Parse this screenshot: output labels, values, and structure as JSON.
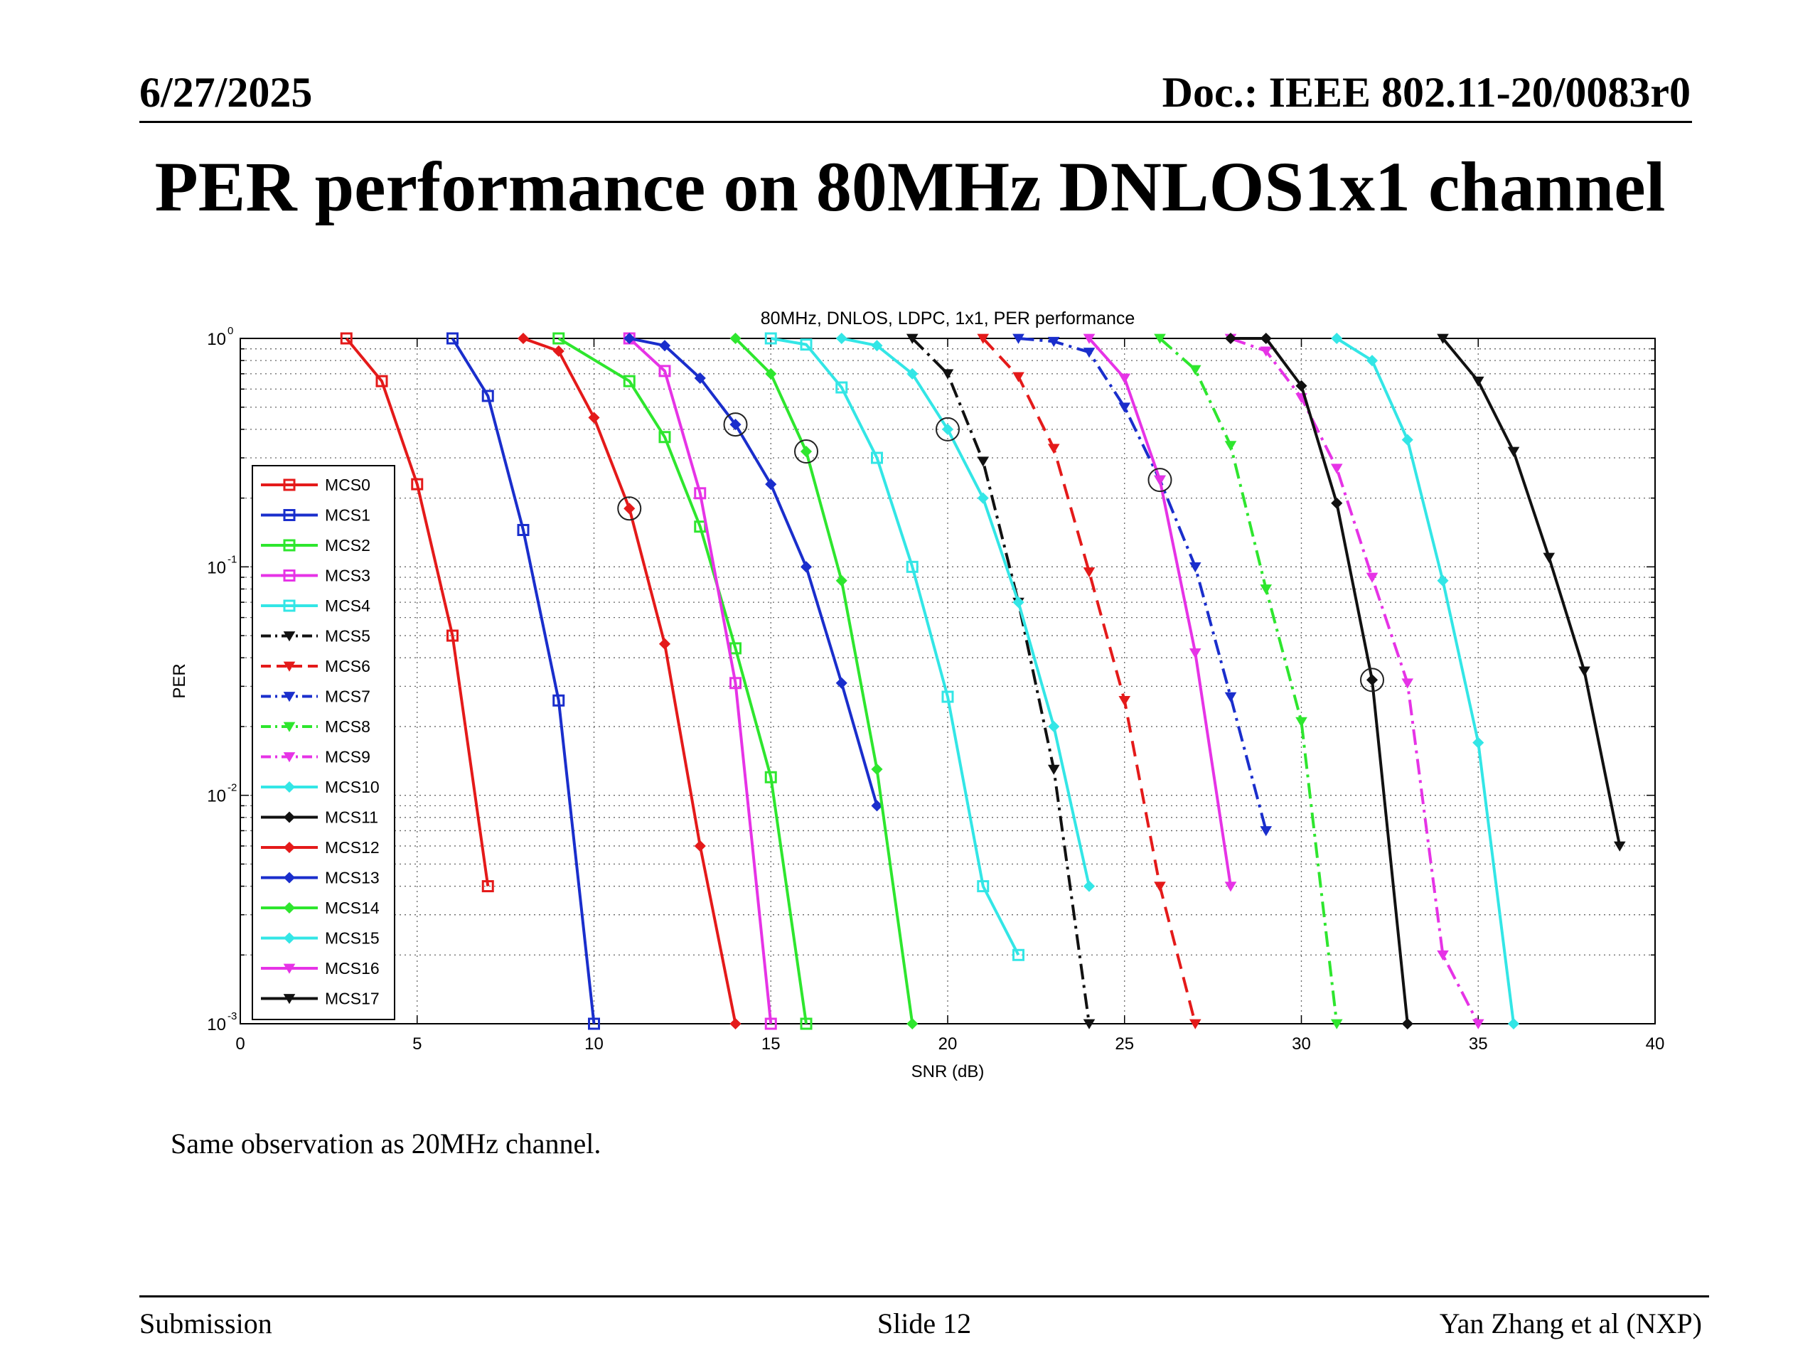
{
  "slide": {
    "date": "6/27/2025",
    "doc_id": "Doc.: IEEE 802.11-20/0083r0",
    "title": "PER performance on 80MHz DNLOS1x1 channel",
    "body_text": "Same observation as 20MHz channel.",
    "footer_left": "Submission",
    "footer_center": "Slide 12",
    "footer_right": "Yan Zhang et al (NXP)"
  },
  "chart_data": {
    "type": "line",
    "title": "80MHz, DNLOS, LDPC, 1x1, PER performance",
    "xlabel": "SNR (dB)",
    "ylabel": "PER",
    "xlim": [
      0,
      40
    ],
    "ylim": [
      0.001,
      1
    ],
    "yscale": "log",
    "grid": true,
    "legend_position": "left",
    "xticks": [
      "0",
      "5",
      "10",
      "15",
      "20",
      "25",
      "30",
      "35",
      "40"
    ],
    "yticks": [
      {
        "base": "10",
        "exp": "0",
        "value": 1
      },
      {
        "base": "10",
        "exp": "-1",
        "value": 0.1
      },
      {
        "base": "10",
        "exp": "-2",
        "value": 0.01
      },
      {
        "base": "10",
        "exp": "-3",
        "value": 0.001
      }
    ],
    "series": [
      {
        "name": "MCS0",
        "color": "#e41a1a",
        "dash": "solid",
        "marker": "square",
        "x": [
          3,
          4,
          5,
          6,
          7
        ],
        "y": [
          1,
          0.65,
          0.23,
          0.05,
          0.004
        ]
      },
      {
        "name": "MCS1",
        "color": "#1a2ecc",
        "dash": "solid",
        "marker": "square",
        "x": [
          6,
          7,
          8,
          9,
          10
        ],
        "y": [
          1,
          0.56,
          0.145,
          0.026,
          0.001
        ]
      },
      {
        "name": "MCS2",
        "color": "#2ee62e",
        "dash": "solid",
        "marker": "square",
        "x": [
          9,
          11,
          12,
          13,
          14,
          15,
          16
        ],
        "y": [
          1,
          0.65,
          0.37,
          0.15,
          0.044,
          0.012,
          0.001
        ]
      },
      {
        "name": "MCS3",
        "color": "#e633e6",
        "dash": "solid",
        "marker": "square",
        "x": [
          11,
          12,
          13,
          14,
          15
        ],
        "y": [
          1,
          0.72,
          0.21,
          0.031,
          0.001
        ]
      },
      {
        "name": "MCS4",
        "color": "#33e6e6",
        "dash": "solid",
        "marker": "square",
        "x": [
          15,
          16,
          17,
          18,
          19,
          20,
          21,
          22
        ],
        "y": [
          1,
          0.94,
          0.61,
          0.3,
          0.1,
          0.027,
          0.004,
          0.002
        ]
      },
      {
        "name": "MCS5",
        "color": "#111111",
        "dash": "dashdot",
        "marker": "triangle-down",
        "x": [
          19,
          20,
          21,
          22,
          23,
          24
        ],
        "y": [
          1,
          0.7,
          0.29,
          0.07,
          0.013,
          0.001
        ]
      },
      {
        "name": "MCS6",
        "color": "#e41a1a",
        "dash": "dashed",
        "marker": "triangle-down",
        "x": [
          21,
          22,
          23,
          24,
          25,
          26,
          27
        ],
        "y": [
          1,
          0.68,
          0.33,
          0.095,
          0.026,
          0.004,
          0.001
        ]
      },
      {
        "name": "MCS7",
        "color": "#1a2ecc",
        "dash": "dashdot",
        "marker": "triangle-down",
        "x": [
          22,
          23,
          24,
          25,
          26,
          27,
          28,
          29
        ],
        "y": [
          1,
          0.97,
          0.87,
          0.5,
          0.24,
          0.1,
          0.027,
          0.007
        ]
      },
      {
        "name": "MCS8",
        "color": "#2ee62e",
        "dash": "dashdot",
        "marker": "triangle-down",
        "x": [
          26,
          27,
          28,
          29,
          30,
          31
        ],
        "y": [
          1,
          0.73,
          0.34,
          0.08,
          0.021,
          0.001
        ]
      },
      {
        "name": "MCS9",
        "color": "#e633e6",
        "dash": "dashdot",
        "marker": "triangle-down",
        "x": [
          28,
          29,
          30,
          31,
          32,
          33,
          34,
          35
        ],
        "y": [
          1,
          0.88,
          0.55,
          0.27,
          0.09,
          0.031,
          0.002,
          0.001
        ]
      },
      {
        "name": "MCS10",
        "color": "#33e6e6",
        "dash": "solid",
        "marker": "diamond",
        "x": [
          17,
          18,
          19,
          20,
          21,
          22,
          23,
          24
        ],
        "y": [
          1,
          0.93,
          0.7,
          0.4,
          0.2,
          0.07,
          0.02,
          0.004
        ]
      },
      {
        "name": "MCS11",
        "color": "#111111",
        "dash": "solid",
        "marker": "diamond",
        "x": [
          28,
          29,
          30,
          31,
          32,
          33
        ],
        "y": [
          1,
          1,
          0.62,
          0.19,
          0.032,
          0.001
        ]
      },
      {
        "name": "MCS12",
        "color": "#e41a1a",
        "dash": "solid",
        "marker": "diamond",
        "x": [
          8,
          9,
          10,
          11,
          12,
          13,
          14
        ],
        "y": [
          1,
          0.88,
          0.45,
          0.18,
          0.046,
          0.006,
          0.001
        ]
      },
      {
        "name": "MCS13",
        "color": "#1a2ecc",
        "dash": "solid",
        "marker": "diamond",
        "x": [
          11,
          12,
          13,
          14,
          15,
          16,
          17,
          18
        ],
        "y": [
          1,
          0.93,
          0.67,
          0.42,
          0.23,
          0.1,
          0.031,
          0.009
        ]
      },
      {
        "name": "MCS14",
        "color": "#2ee62e",
        "dash": "solid",
        "marker": "diamond",
        "x": [
          14,
          15,
          16,
          17,
          18,
          19
        ],
        "y": [
          1,
          0.7,
          0.32,
          0.087,
          0.013,
          0.001
        ]
      },
      {
        "name": "MCS15",
        "color": "#33e6e6",
        "dash": "solid",
        "marker": "diamond",
        "x": [
          31,
          32,
          33,
          34,
          35,
          36
        ],
        "y": [
          1,
          0.8,
          0.36,
          0.087,
          0.017,
          0.001
        ]
      },
      {
        "name": "MCS16",
        "color": "#e633e6",
        "dash": "solid",
        "marker": "triangle-down",
        "x": [
          24,
          25,
          26,
          27,
          28
        ],
        "y": [
          1,
          0.67,
          0.24,
          0.042,
          0.004
        ]
      },
      {
        "name": "MCS17",
        "color": "#111111",
        "dash": "solid",
        "marker": "triangle-down",
        "x": [
          34,
          35,
          36,
          37,
          38,
          39
        ],
        "y": [
          1,
          0.65,
          0.32,
          0.11,
          0.035,
          0.006
        ]
      }
    ],
    "annotations": [
      {
        "type": "circle",
        "x": 11,
        "y": 0.18
      },
      {
        "type": "circle",
        "x": 14,
        "y": 0.42
      },
      {
        "type": "circle",
        "x": 16,
        "y": 0.32
      },
      {
        "type": "circle",
        "x": 20,
        "y": 0.4
      },
      {
        "type": "circle",
        "x": 26,
        "y": 0.24
      },
      {
        "type": "circle",
        "x": 32,
        "y": 0.032
      }
    ]
  }
}
